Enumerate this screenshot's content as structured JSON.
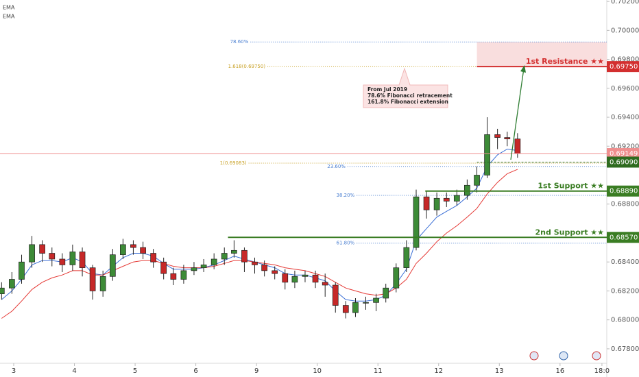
{
  "chart_data": {
    "type": "candlestick",
    "legend": [
      "EMA",
      "EMA"
    ],
    "up_color": "#3d8b37",
    "down_color": "#c62828",
    "x": [
      -0.2,
      -0.03,
      0.13,
      0.3,
      0.47,
      0.63,
      0.8,
      0.97,
      1.13,
      1.3,
      1.47,
      1.63,
      1.8,
      1.97,
      2.13,
      2.3,
      2.47,
      2.63,
      2.8,
      2.97,
      3.13,
      3.3,
      3.47,
      3.63,
      3.8,
      3.97,
      4.13,
      4.3,
      4.47,
      4.63,
      4.8,
      4.97,
      5.13,
      5.3,
      5.47,
      5.63,
      5.8,
      5.97,
      6.13,
      6.3,
      6.47,
      6.63,
      6.8,
      6.97,
      7.13,
      7.3,
      7.47,
      7.63,
      7.8,
      7.97,
      8.13,
      8.3
    ],
    "open": [
      0.6818,
      0.6822,
      0.6828,
      0.684,
      0.6852,
      0.6846,
      0.6842,
      0.6838,
      0.6847,
      0.6836,
      0.682,
      0.683,
      0.6845,
      0.6852,
      0.685,
      0.6846,
      0.684,
      0.6832,
      0.6828,
      0.6834,
      0.6836,
      0.6838,
      0.6842,
      0.6846,
      0.6848,
      0.684,
      0.6838,
      0.6834,
      0.6832,
      0.6826,
      0.683,
      0.6831,
      0.6826,
      0.6824,
      0.681,
      0.6805,
      0.6812,
      0.6812,
      0.6815,
      0.6822,
      0.6836,
      0.685,
      0.6885,
      0.6876,
      0.6884,
      0.6882,
      0.6886,
      0.6893,
      0.69,
      0.6928,
      0.6926,
      0.6925
    ],
    "high": [
      0.6826,
      0.6833,
      0.6845,
      0.6858,
      0.6855,
      0.685,
      0.6846,
      0.6852,
      0.685,
      0.6838,
      0.6834,
      0.6849,
      0.6856,
      0.6855,
      0.6854,
      0.6849,
      0.6843,
      0.6836,
      0.6838,
      0.684,
      0.6842,
      0.6846,
      0.685,
      0.6855,
      0.685,
      0.6843,
      0.6841,
      0.6837,
      0.6835,
      0.6834,
      0.6834,
      0.6834,
      0.6832,
      0.6826,
      0.6813,
      0.6815,
      0.6816,
      0.6818,
      0.6825,
      0.6839,
      0.6855,
      0.689,
      0.6889,
      0.6888,
      0.6888,
      0.689,
      0.6897,
      0.6906,
      0.694,
      0.6932,
      0.693,
      0.6929
    ],
    "low": [
      0.6814,
      0.6818,
      0.6825,
      0.6836,
      0.684,
      0.6837,
      0.6833,
      0.6834,
      0.683,
      0.6814,
      0.6816,
      0.6827,
      0.6842,
      0.6845,
      0.6842,
      0.6836,
      0.6828,
      0.6824,
      0.6825,
      0.6831,
      0.6833,
      0.6835,
      0.6838,
      0.6843,
      0.6833,
      0.6832,
      0.683,
      0.6828,
      0.6821,
      0.6822,
      0.6826,
      0.6822,
      0.6816,
      0.6805,
      0.6801,
      0.6802,
      0.6807,
      0.6806,
      0.6812,
      0.6819,
      0.6833,
      0.6848,
      0.687,
      0.6872,
      0.6878,
      0.6879,
      0.6883,
      0.6888,
      0.6898,
      0.6918,
      0.692,
      0.6912
    ],
    "close": [
      0.6822,
      0.6828,
      0.684,
      0.6852,
      0.6846,
      0.6842,
      0.6838,
      0.6847,
      0.6836,
      0.682,
      0.683,
      0.6845,
      0.6852,
      0.685,
      0.6846,
      0.684,
      0.6832,
      0.6828,
      0.6834,
      0.6836,
      0.6838,
      0.6842,
      0.6846,
      0.6848,
      0.684,
      0.6838,
      0.6834,
      0.6832,
      0.6826,
      0.683,
      0.6831,
      0.6826,
      0.6824,
      0.681,
      0.6805,
      0.6812,
      0.6812,
      0.6815,
      0.6822,
      0.6836,
      0.685,
      0.6885,
      0.6876,
      0.6884,
      0.6882,
      0.6886,
      0.6893,
      0.69,
      0.6928,
      0.6926,
      0.6925,
      0.6915
    ],
    "indicators": [
      {
        "color": "#3b6fd6",
        "values": [
          0.6814,
          0.682,
          0.6828,
          0.6838,
          0.6841,
          0.6841,
          0.684,
          0.6843,
          0.684,
          0.6832,
          0.6831,
          0.6837,
          0.6843,
          0.6846,
          0.6846,
          0.6844,
          0.6839,
          0.6835,
          0.6835,
          0.6835,
          0.6836,
          0.6838,
          0.6841,
          0.6844,
          0.6842,
          0.684,
          0.6838,
          0.6836,
          0.6832,
          0.6831,
          0.6831,
          0.6829,
          0.6827,
          0.682,
          0.6814,
          0.6813,
          0.6813,
          0.6814,
          0.6817,
          0.6825,
          0.6835,
          0.6855,
          0.6863,
          0.6871,
          0.6875,
          0.6879,
          0.6885,
          0.6891,
          0.6906,
          0.6914,
          0.6918,
          0.6917
        ]
      },
      {
        "color": "#e53935",
        "values": [
          0.6801,
          0.6806,
          0.6813,
          0.6821,
          0.6826,
          0.6829,
          0.6831,
          0.6834,
          0.6834,
          0.6831,
          0.6831,
          0.6834,
          0.6837,
          0.684,
          0.6841,
          0.6841,
          0.6839,
          0.6837,
          0.6836,
          0.6836,
          0.6836,
          0.6837,
          0.6839,
          0.6841,
          0.6841,
          0.684,
          0.6839,
          0.6838,
          0.6836,
          0.6835,
          0.6834,
          0.6832,
          0.683,
          0.6826,
          0.6822,
          0.682,
          0.6818,
          0.6817,
          0.6818,
          0.6822,
          0.6828,
          0.6839,
          0.6846,
          0.6854,
          0.686,
          0.6865,
          0.6871,
          0.6877,
          0.6887,
          0.6895,
          0.6901,
          0.6904
        ]
      }
    ],
    "xlim": [
      -0.226,
      9.77
    ],
    "xticks": [
      {
        "value": 0,
        "label": "3"
      },
      {
        "value": 1,
        "label": "4"
      },
      {
        "value": 2,
        "label": "5"
      },
      {
        "value": 3,
        "label": "6"
      },
      {
        "value": 4,
        "label": "9"
      },
      {
        "value": 5,
        "label": "10"
      },
      {
        "value": 6,
        "label": "11"
      },
      {
        "value": 7,
        "label": "12"
      },
      {
        "value": 8,
        "label": "13"
      },
      {
        "value": 9,
        "label": "16"
      },
      {
        "value": 9.69,
        "label": "18:0"
      }
    ],
    "ylim": [
      0.677,
      0.7021
    ],
    "yticks": [
      {
        "value": 0.702,
        "label": "0.70200"
      },
      {
        "value": 0.7,
        "label": "0.70000"
      },
      {
        "value": 0.698,
        "label": "0.69800"
      },
      {
        "value": 0.696,
        "label": "0.69600"
      },
      {
        "value": 0.694,
        "label": "0.69400"
      },
      {
        "value": 0.692,
        "label": "0.69200"
      },
      {
        "value": 0.688,
        "label": "0.68800"
      },
      {
        "value": 0.684,
        "label": "0.68400"
      },
      {
        "value": 0.682,
        "label": "0.68200"
      },
      {
        "value": 0.68,
        "label": "0.68000"
      },
      {
        "value": 0.678,
        "label": "0.67800"
      }
    ],
    "levels": [
      {
        "name": "1st Resistance ★★",
        "value": 0.6975,
        "label": "0.69750",
        "color": "#d32f2f",
        "x_start": 7.63
      },
      {
        "value": 0.69149,
        "label": "0.69149",
        "color": "#ef8f8f",
        "x_start": -0.226
      },
      {
        "value": 0.6909,
        "label": "0.69090",
        "color": "#2e6b1f",
        "x_start": 7.63
      },
      {
        "name": "1st Support ★★",
        "value": 0.6889,
        "label": "0.68890",
        "color": "#3a7d23",
        "x_start": 6.78
      },
      {
        "name": "2nd Support ★★",
        "value": 0.6857,
        "label": "0.68570",
        "color": "#3a7d23",
        "x_start": 3.53
      }
    ],
    "zone": {
      "from": 0.6975,
      "to": 0.6992,
      "x_start": 7.63,
      "color": "#f9dede"
    },
    "fibonacci": [
      {
        "label": "78.60%",
        "value": 0.6992,
        "x_start": 3.9,
        "color": "#4a7fd1"
      },
      {
        "label": "1.618(0.69750)",
        "value": 0.6975,
        "x_start": 4.18,
        "color": "#c9a227"
      },
      {
        "label": "1(0.69083)",
        "value": 0.69083,
        "x_start": 3.87,
        "color": "#c9a227"
      },
      {
        "label": "23.60%",
        "value": 0.6906,
        "x_start": 5.5,
        "color": "#4a7fd1"
      },
      {
        "label": "38.20%",
        "value": 0.6886,
        "x_start": 5.65,
        "color": "#4a7fd1"
      },
      {
        "label": "61.80%",
        "value": 0.6853,
        "x_start": 5.65,
        "color": "#4a7fd1"
      }
    ],
    "annotation": [
      "From Jul 2019",
      "78.6% Fibonacci retracement",
      "161.8% Fibonacci extension"
    ]
  }
}
